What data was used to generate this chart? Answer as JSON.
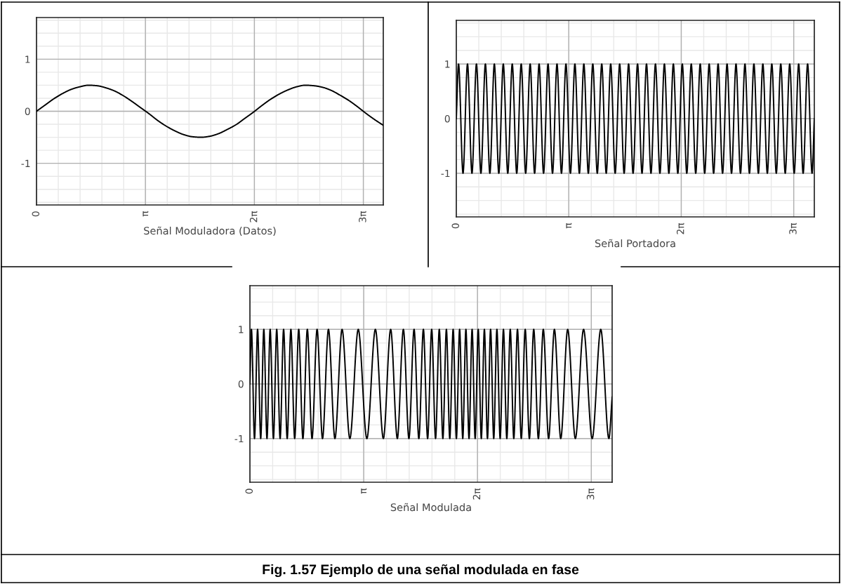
{
  "chart_data": [
    {
      "type": "line",
      "xlabel": "Señal Moduladora (Datos)",
      "xlim": [
        0,
        10
      ],
      "ylim": [
        -1.8,
        1.8
      ],
      "xticks": [
        0,
        {
          "value": 3.1416,
          "label": "π"
        },
        {
          "value": 6.2832,
          "label": "2π"
        },
        {
          "value": 9.4248,
          "label": "3π"
        }
      ],
      "yticks": [
        -1,
        0,
        1
      ],
      "grid": true,
      "series": [
        {
          "color": "#000000",
          "x": [
            0,
            0.25,
            0.5,
            0.75,
            1,
            1.25,
            1.5,
            1.75,
            2,
            2.25,
            2.5,
            2.75,
            3,
            3.25,
            3.5,
            3.75,
            4,
            4.25,
            4.5,
            4.75,
            5,
            5.25,
            5.5,
            5.75,
            6,
            6.25,
            6.5,
            6.75,
            7,
            7.25,
            7.5,
            7.75,
            8,
            8.25,
            8.5,
            8.75,
            9,
            9.25,
            9.5,
            9.75,
            10
          ],
          "values": [
            0,
            0.12,
            0.24,
            0.34,
            0.42,
            0.47,
            0.5,
            0.49,
            0.45,
            0.39,
            0.3,
            0.19,
            0.07,
            -0.05,
            -0.18,
            -0.29,
            -0.38,
            -0.45,
            -0.49,
            -0.5,
            -0.48,
            -0.43,
            -0.35,
            -0.26,
            -0.14,
            -0.02,
            0.11,
            0.23,
            0.33,
            0.41,
            0.47,
            0.5,
            0.49,
            0.46,
            0.4,
            0.31,
            0.21,
            0.09,
            -0.04,
            -0.16,
            -0.27
          ]
        }
      ]
    },
    {
      "type": "line",
      "xlabel": "Señal Portadora",
      "xlim": [
        0,
        10
      ],
      "ylim": [
        -1.8,
        1.8
      ],
      "xticks": [
        0,
        {
          "value": 3.1416,
          "label": "π"
        },
        {
          "value": 6.2832,
          "label": "2π"
        },
        {
          "value": 9.4248,
          "label": "3π"
        }
      ],
      "yticks": [
        -1,
        0,
        1
      ],
      "grid": true,
      "series": [
        {
          "color": "#000000",
          "x": [
            0,
            0.0625,
            0.1875,
            0.3125,
            0.4375,
            0.5625,
            0.6875,
            0.8125,
            0.9375,
            1.0625,
            1.1875,
            1.3125,
            1.4375,
            1.5625,
            1.6875,
            1.8125,
            1.9375,
            2.0625,
            2.1875,
            2.3125,
            2.4375,
            2.5625,
            2.6875,
            2.8125,
            2.9375,
            3.0625,
            3.1875,
            3.3125,
            3.4375,
            3.5625,
            3.6875,
            3.8125,
            3.9375,
            4.0625,
            4.1875,
            4.3125,
            4.4375,
            4.5625,
            4.6875,
            4.8125,
            4.9375,
            5.0625,
            5.1875,
            5.3125,
            5.4375,
            5.5625,
            5.6875,
            5.8125,
            5.9375,
            6.0625,
            6.1875,
            6.3125,
            6.4375,
            6.5625,
            6.6875,
            6.8125,
            6.9375,
            7.0625,
            7.1875,
            7.3125,
            7.4375,
            7.5625,
            7.6875,
            7.8125,
            7.9375,
            8.0625,
            8.1875,
            8.3125,
            8.4375,
            8.5625,
            8.6875,
            8.8125,
            8.9375,
            9.0625,
            9.1875,
            9.3125,
            9.4375,
            9.5625,
            9.6875,
            9.8125,
            9.9375,
            10
          ],
          "values": [
            0,
            1,
            -1,
            1,
            -1,
            1,
            -1,
            1,
            -1,
            1,
            -1,
            1,
            -1,
            1,
            -1,
            1,
            -1,
            1,
            -1,
            1,
            -1,
            1,
            -1,
            1,
            -1,
            1,
            -1,
            1,
            -1,
            1,
            -1,
            1,
            -1,
            1,
            -1,
            1,
            -1,
            1,
            -1,
            1,
            -1,
            1,
            -1,
            1,
            -1,
            1,
            -1,
            1,
            -1,
            1,
            -1,
            1,
            -1,
            1,
            -1,
            1,
            -1,
            1,
            -1,
            1,
            -1,
            1,
            -1,
            1,
            -1,
            1,
            -1,
            1,
            -1,
            1,
            -1,
            1,
            -1,
            1,
            -1,
            1,
            -1,
            1,
            -1,
            1,
            -1,
            0
          ]
        }
      ]
    },
    {
      "type": "line",
      "xlabel": "Señal Modulada",
      "xlim": [
        0,
        10
      ],
      "ylim": [
        -1.8,
        1.8
      ],
      "xticks": [
        0,
        {
          "value": 3.1416,
          "label": "π"
        },
        {
          "value": 6.2832,
          "label": "2π"
        },
        {
          "value": 9.4248,
          "label": "3π"
        }
      ],
      "yticks": [
        -1,
        0,
        1
      ],
      "grid": true,
      "annotations": [
        "Fig. 1.57 Ejemplo de una señal modulada en fase"
      ],
      "series": [
        {
          "color": "#000000",
          "x": [
            0,
            0.042,
            0.127,
            0.212,
            0.298,
            0.384,
            0.471,
            0.559,
            0.649,
            0.74,
            0.834,
            0.93,
            1.029,
            1.131,
            1.236,
            1.347,
            1.463,
            1.585,
            1.715,
            1.854,
            2.004,
            2.168,
            2.347,
            2.544,
            2.759,
            2.991,
            3.229,
            3.464,
            3.684,
            3.886,
            4.07,
            4.237,
            4.39,
            4.532,
            4.664,
            4.789,
            4.906,
            5.018,
            5.125,
            5.228,
            5.327,
            5.424,
            5.518,
            5.61,
            5.7,
            5.789,
            5.876,
            5.963,
            6.049,
            6.134,
            6.218,
            6.303,
            6.388,
            6.473,
            6.558,
            6.644,
            6.731,
            6.819,
            6.908,
            6.999,
            7.092,
            7.187,
            7.285,
            7.386,
            7.491,
            7.6,
            7.715,
            7.835,
            7.963,
            8.099,
            8.246,
            8.406,
            8.581,
            8.773,
            8.984,
            9.211,
            9.449,
            9.686,
            9.91,
            10
          ],
          "values": [
            0,
            1,
            -1,
            1,
            -1,
            1,
            -1,
            1,
            -1,
            1,
            -1,
            1,
            -1,
            1,
            -1,
            1,
            -1,
            1,
            -1,
            1,
            -1,
            1,
            -1,
            1,
            -1,
            1,
            -1,
            1,
            -1,
            1,
            -1,
            1,
            -1,
            1,
            -1,
            1,
            -1,
            1,
            -1,
            1,
            -1,
            1,
            -1,
            1,
            -1,
            1,
            -1,
            1,
            -1,
            1,
            -1,
            1,
            -1,
            1,
            -1,
            1,
            -1,
            1,
            -1,
            1,
            -1,
            1,
            -1,
            1,
            -1,
            1,
            -1,
            1,
            -1,
            1,
            -1,
            1,
            -1,
            1,
            -1,
            1,
            -1,
            1,
            -1,
            -0.24
          ]
        }
      ]
    }
  ]
}
